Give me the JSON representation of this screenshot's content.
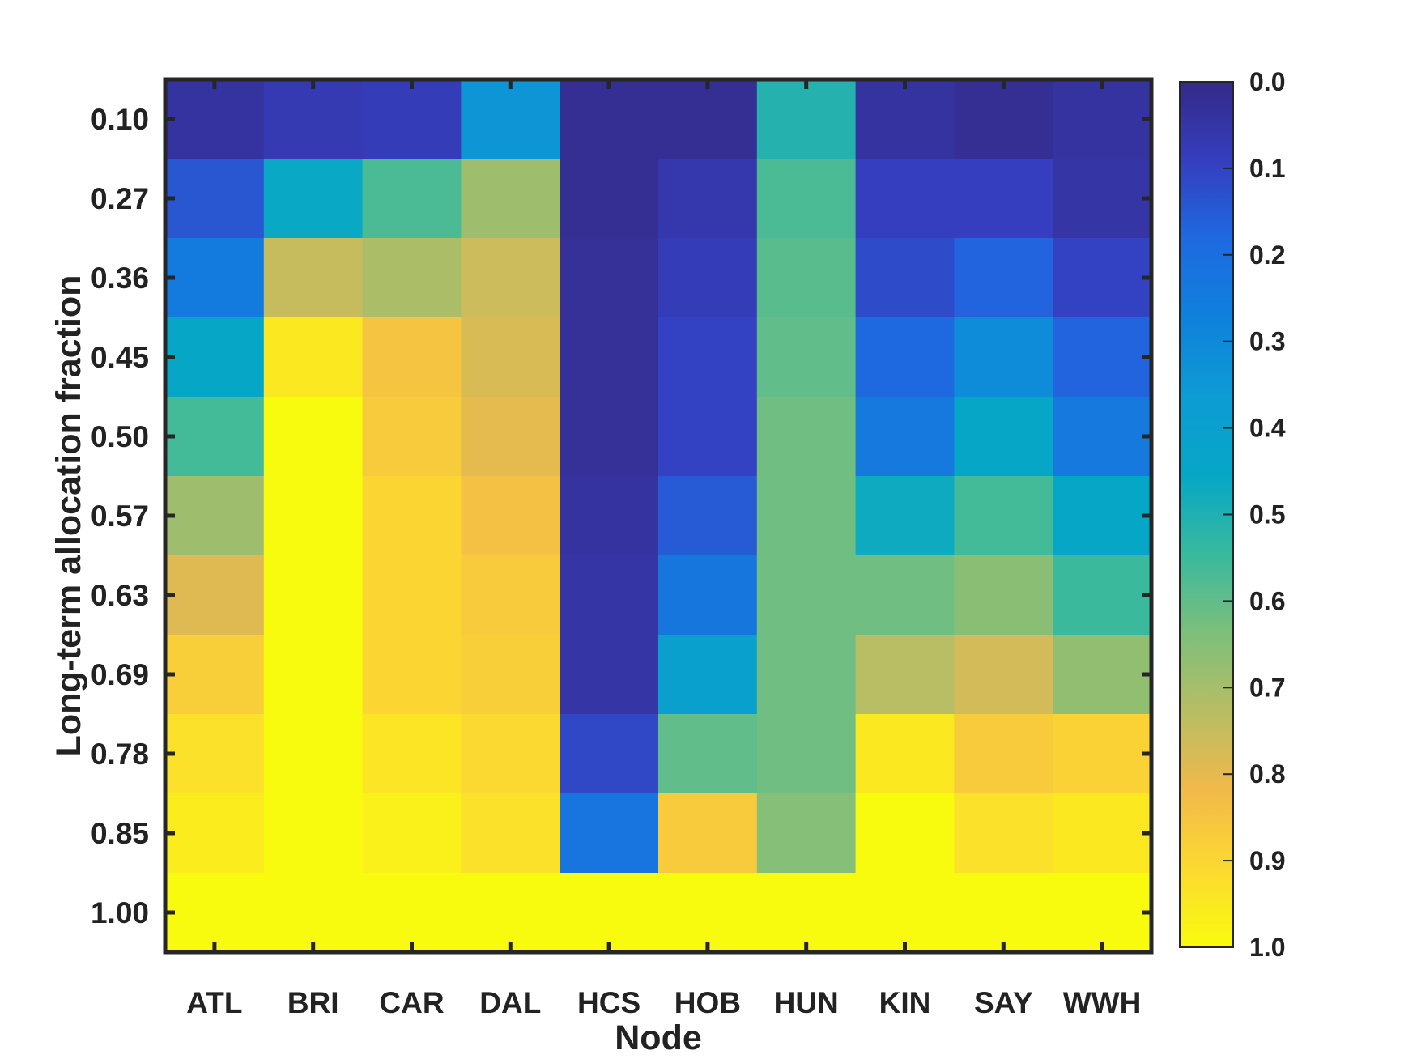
{
  "chart_data": {
    "type": "heatmap",
    "xlabel": "Node",
    "ylabel": "Long-term allocation fraction",
    "x_categories": [
      "ATL",
      "BRI",
      "CAR",
      "DAL",
      "HCS",
      "HOB",
      "HUN",
      "KIN",
      "SAY",
      "WWH"
    ],
    "y_categories": [
      "0.10",
      "0.27",
      "0.36",
      "0.45",
      "0.50",
      "0.57",
      "0.63",
      "0.69",
      "0.78",
      "0.85",
      "1.00"
    ],
    "values": [
      [
        0.04,
        0.07,
        0.08,
        0.34,
        0.02,
        0.02,
        0.51,
        0.04,
        0.02,
        0.04
      ],
      [
        0.14,
        0.46,
        0.57,
        0.69,
        0.02,
        0.06,
        0.57,
        0.09,
        0.09,
        0.05
      ],
      [
        0.25,
        0.75,
        0.71,
        0.76,
        0.03,
        0.08,
        0.59,
        0.12,
        0.17,
        0.1
      ],
      [
        0.45,
        0.95,
        0.85,
        0.78,
        0.03,
        0.1,
        0.6,
        0.18,
        0.31,
        0.17
      ],
      [
        0.56,
        1.0,
        0.87,
        0.8,
        0.03,
        0.1,
        0.62,
        0.24,
        0.45,
        0.24
      ],
      [
        0.69,
        1.0,
        0.9,
        0.84,
        0.04,
        0.15,
        0.62,
        0.47,
        0.56,
        0.45
      ],
      [
        0.79,
        1.0,
        0.9,
        0.87,
        0.05,
        0.23,
        0.62,
        0.62,
        0.66,
        0.55
      ],
      [
        0.88,
        1.0,
        0.9,
        0.88,
        0.05,
        0.4,
        0.62,
        0.73,
        0.77,
        0.67
      ],
      [
        0.93,
        1.0,
        0.94,
        0.91,
        0.11,
        0.6,
        0.62,
        0.95,
        0.87,
        0.89
      ],
      [
        0.96,
        1.0,
        0.97,
        0.93,
        0.22,
        0.87,
        0.65,
        1.0,
        0.93,
        0.95
      ],
      [
        1.0,
        1.0,
        1.0,
        1.0,
        1.0,
        1.0,
        1.0,
        1.0,
        1.0,
        1.0
      ]
    ],
    "colorbar": {
      "ticks": [
        "0.0",
        "0.1",
        "0.2",
        "0.3",
        "0.4",
        "0.5",
        "0.6",
        "0.7",
        "0.8",
        "0.9",
        "1.0"
      ],
      "range": [
        0,
        1
      ],
      "colormap": "parula",
      "direction": "top-to-bottom"
    },
    "legend_placement": "right",
    "grid": false
  },
  "colors": {
    "axis": "#262626",
    "parula_stops": [
      "#352a87",
      "#353ebf",
      "#1f6ae1",
      "#0f81dc",
      "#0d9cd4",
      "#06a7c6",
      "#38b99e",
      "#7cbf7b",
      "#b7bd64",
      "#f1b94a",
      "#fcd931",
      "#f9fb0e"
    ]
  }
}
